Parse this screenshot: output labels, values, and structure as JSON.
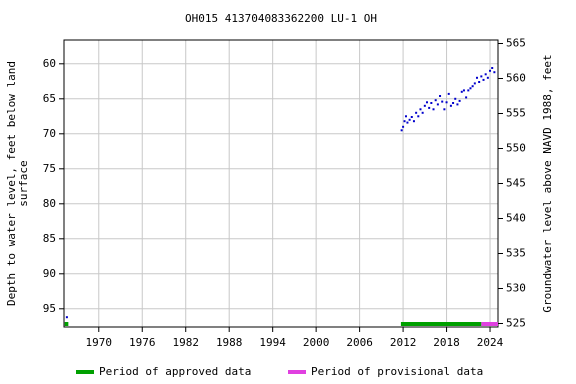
{
  "chart_data": {
    "type": "scatter",
    "title": "OH015 413704083362200 LU-1 OH",
    "ylabel": [
      "Depth to water level, feet below land",
      "surface"
    ],
    "y2label": "Groundwater level above NAVD 1988, feet",
    "xlim": [
      1965.2,
      2025.1
    ],
    "xticks": [
      1970,
      1976,
      1982,
      1988,
      1994,
      2000,
      2006,
      2012,
      2018,
      2024
    ],
    "ylim": [
      56.6,
      97.6
    ],
    "yinverted": true,
    "yticks": [
      60,
      65,
      70,
      75,
      80,
      85,
      90,
      95
    ],
    "y2lim": [
      524.5,
      565.5
    ],
    "y2ticks": [
      525,
      530,
      535,
      540,
      545,
      550,
      555,
      560,
      565
    ],
    "grid": true,
    "series": [
      {
        "color": "#0000cc",
        "x": [
          1965.6,
          2011.8,
          2012.0,
          2012.2,
          2012.4,
          2012.6,
          2012.9,
          2013.2,
          2013.5,
          2013.8,
          2014.1,
          2014.4,
          2014.7,
          2015.0,
          2015.3,
          2015.6,
          2015.9,
          2016.2,
          2016.5,
          2016.8,
          2017.1,
          2017.4,
          2017.7,
          2018.0,
          2018.3,
          2018.6,
          2018.9,
          2019.2,
          2019.5,
          2019.8,
          2020.1,
          2020.4,
          2020.7,
          2021.0,
          2021.3,
          2021.6,
          2021.9,
          2022.2,
          2022.5,
          2022.8,
          2023.1,
          2023.4,
          2023.7,
          2024.0,
          2024.3,
          2024.6
        ],
        "values": [
          96.2,
          69.5,
          69.0,
          68.2,
          67.5,
          68.4,
          68.0,
          67.6,
          68.2,
          67.0,
          67.5,
          66.5,
          67.0,
          66.0,
          65.5,
          66.3,
          65.6,
          66.5,
          65.2,
          65.8,
          64.6,
          65.4,
          66.5,
          65.5,
          64.3,
          66.0,
          65.6,
          65.0,
          65.8,
          65.3,
          64.0,
          63.8,
          64.8,
          63.8,
          63.5,
          63.2,
          62.8,
          62.0,
          62.6,
          61.8,
          62.3,
          61.5,
          62.0,
          61.0,
          60.6,
          61.2
        ]
      }
    ],
    "periods": [
      {
        "name": "Period of approved data",
        "color": "#00a000",
        "ranges": [
          [
            1965.3,
            1965.8
          ],
          [
            2011.7,
            2022.8
          ]
        ]
      },
      {
        "name": "Period of provisional data",
        "color": "#e040e0",
        "ranges": [
          [
            2022.8,
            2025.1
          ]
        ]
      }
    ]
  }
}
